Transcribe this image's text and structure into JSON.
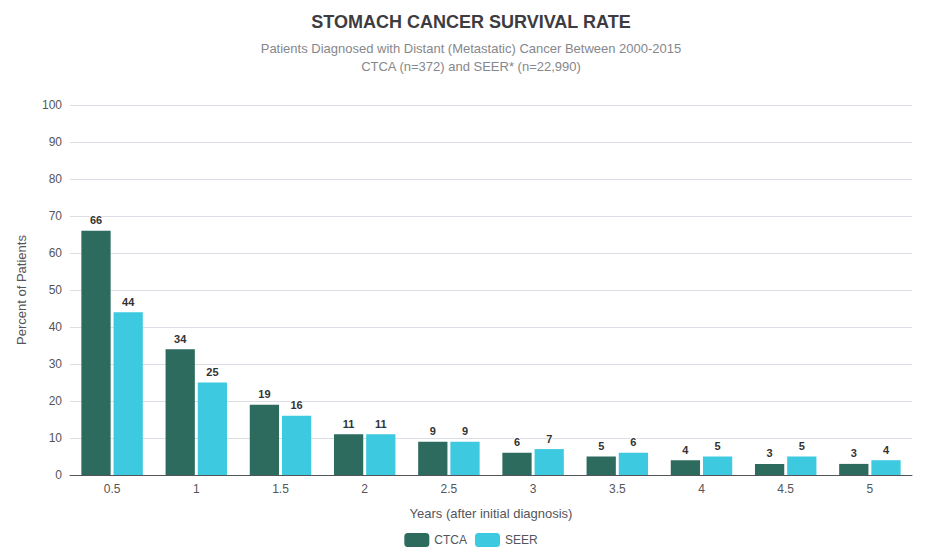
{
  "chart_data": {
    "type": "bar",
    "title": "STOMACH CANCER SURVIVAL RATE",
    "subtitle": "Patients Diagnosed with Distant (Metastatic) Cancer Between 2000-2015\nCTCA (n=372) and SEER* (n=22,990)",
    "x_label": "Years (after initial diagnosis)",
    "y_label": "Percent of Patients",
    "categories": [
      "0.5",
      "1",
      "1.5",
      "2",
      "2.5",
      "3",
      "3.5",
      "4",
      "4.5",
      "5"
    ],
    "series": [
      {
        "name": "CTCA",
        "color": "#2d6b5e",
        "values": [
          66,
          34,
          19,
          11,
          9,
          6,
          5,
          4,
          3,
          3
        ]
      },
      {
        "name": "SEER",
        "color": "#3dcae0",
        "values": [
          44,
          25,
          16,
          11,
          9,
          7,
          6,
          5,
          5,
          4
        ]
      }
    ],
    "ylim": [
      0,
      100
    ],
    "yticks": [
      0,
      10,
      20,
      30,
      40,
      50,
      60,
      70,
      80,
      90,
      100
    ],
    "grid": true,
    "legend": "bottom",
    "data_labels": true
  }
}
